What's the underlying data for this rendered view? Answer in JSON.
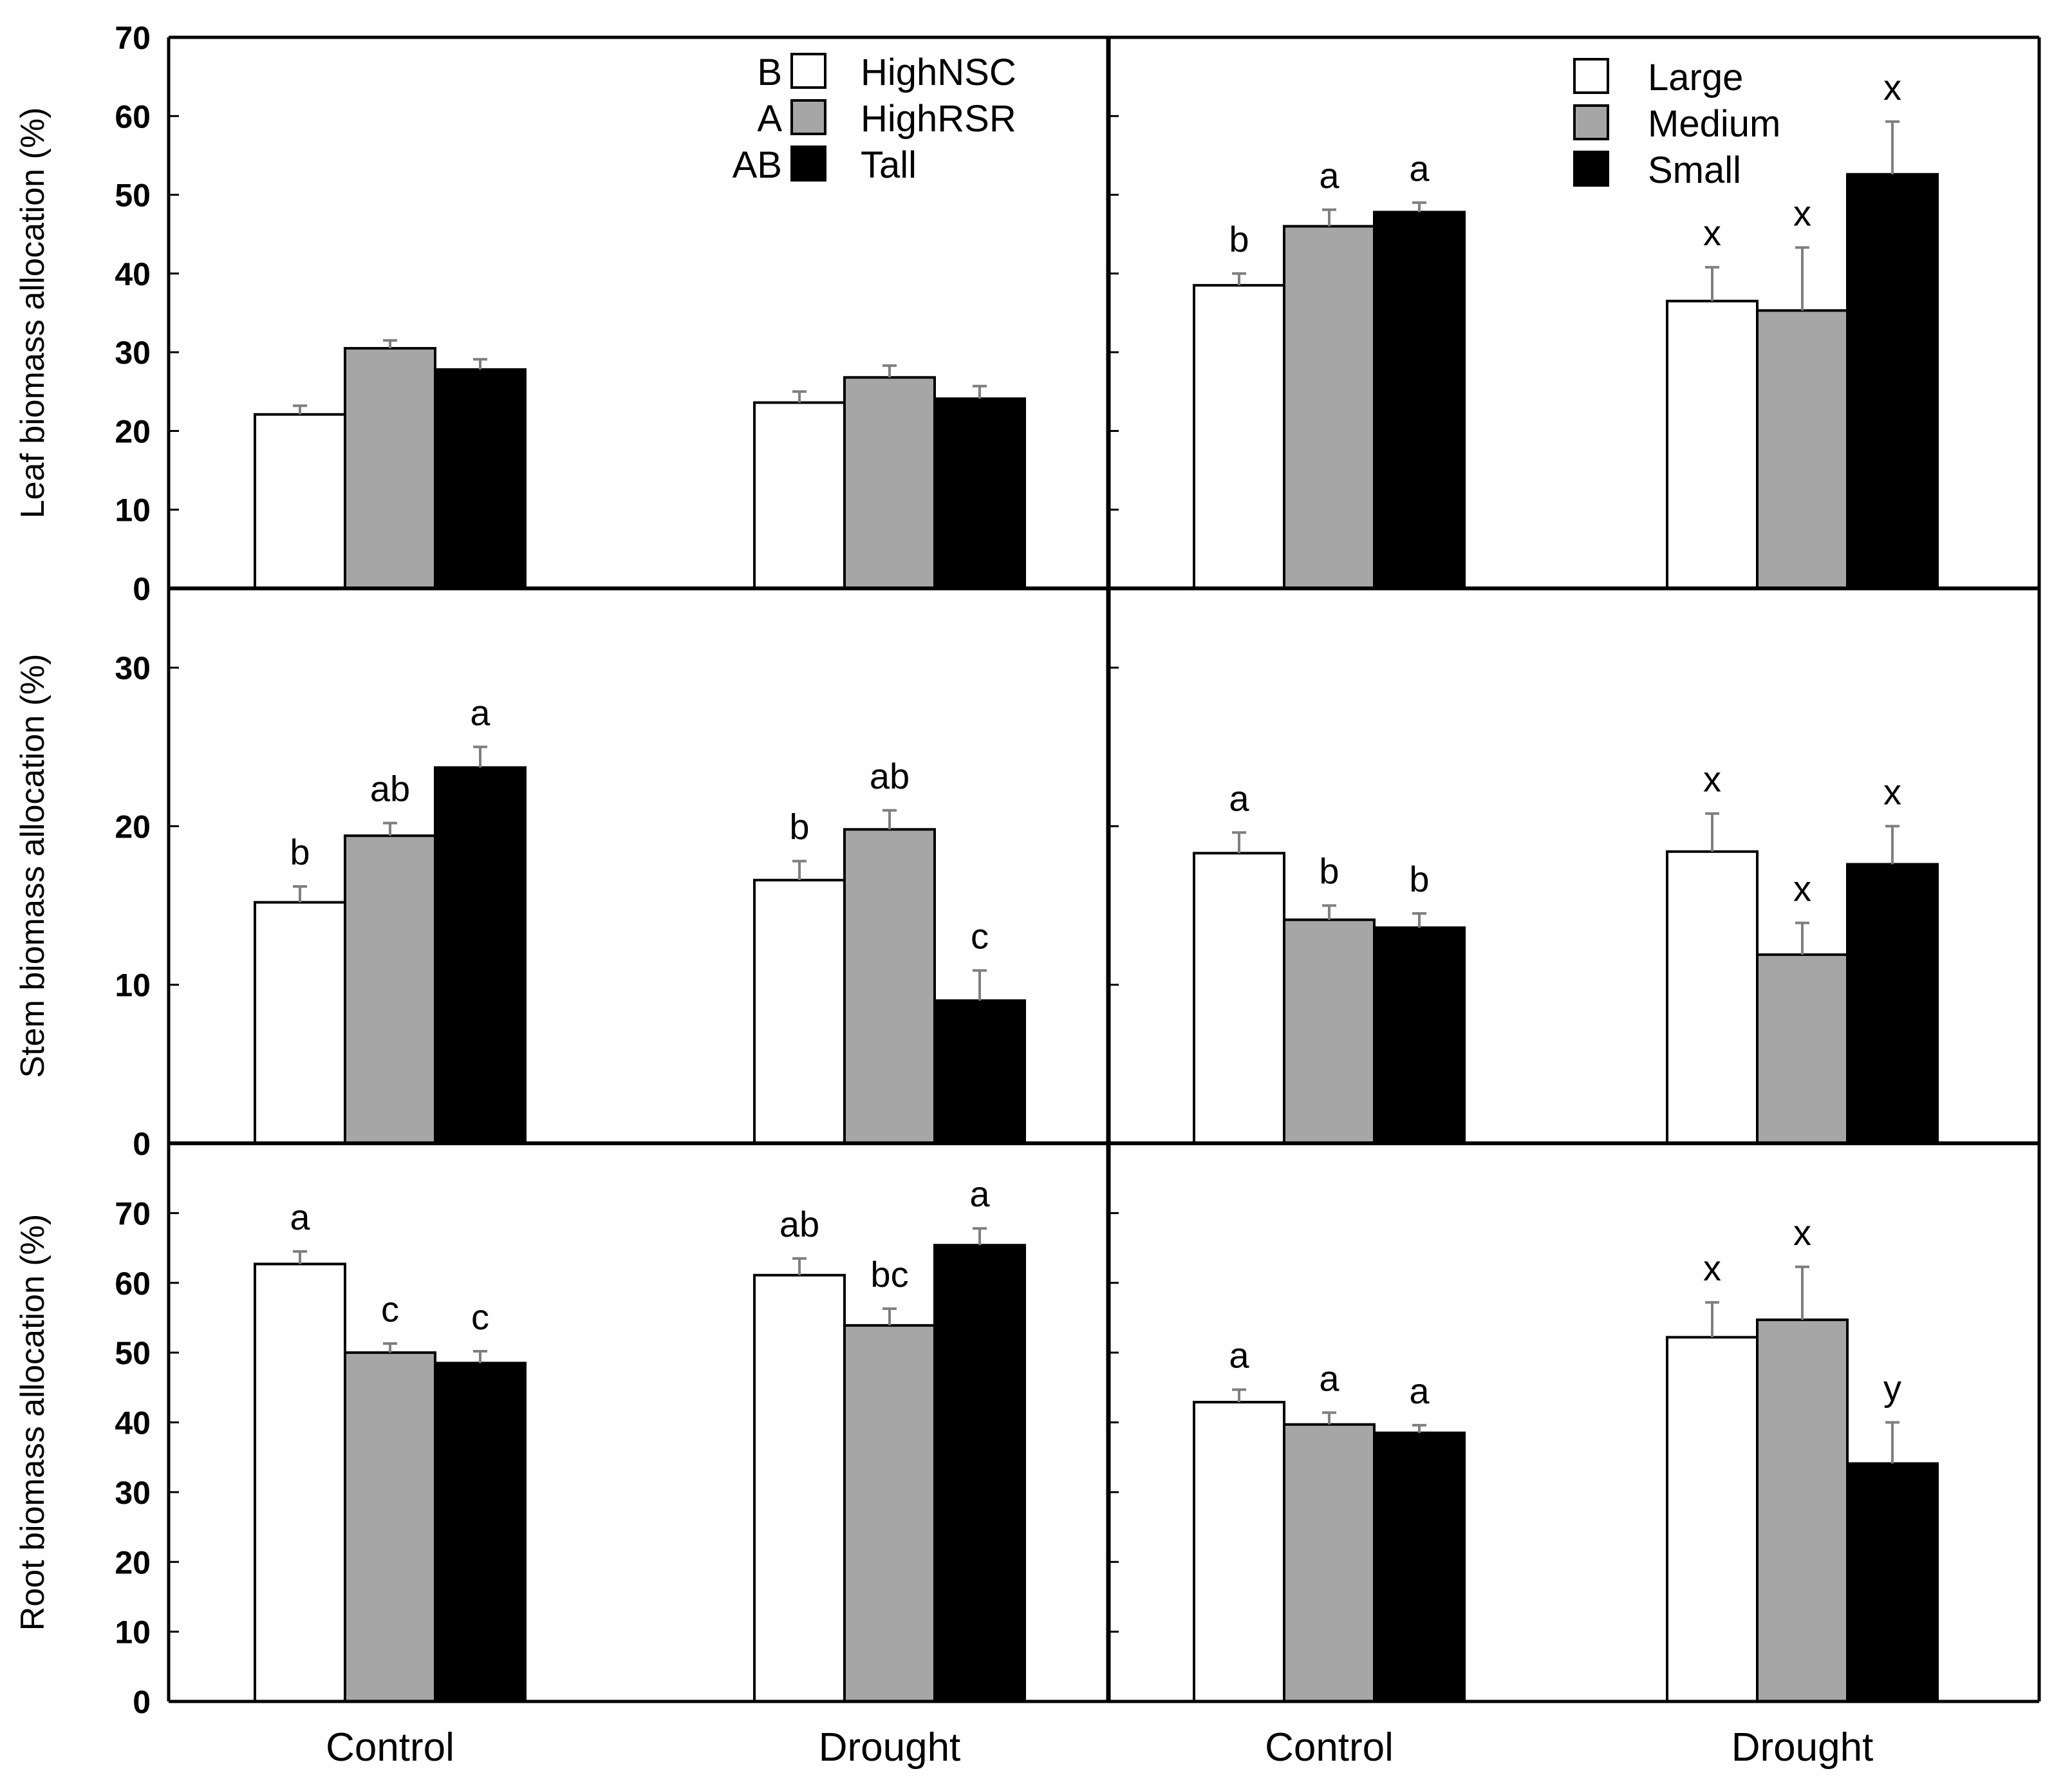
{
  "figure": {
    "x_categories": [
      "Control",
      "Drought"
    ],
    "colors": {
      "white": "#ffffff",
      "gray": "#a6a6a6",
      "black": "#000000",
      "error_bar": "#7f7f7f"
    }
  },
  "chart_data": [
    {
      "type": "bar",
      "id": "leaf-left",
      "row": 0,
      "col": 0,
      "ylabel": "Leaf biomass allocation (%)",
      "ylim": [
        0,
        70
      ],
      "yticks": [
        0,
        10,
        20,
        30,
        40,
        50,
        60,
        70
      ],
      "ytick_labels": [
        "0",
        "10",
        "20",
        "30",
        "40",
        "50",
        "60",
        "70"
      ],
      "categories": [
        "Control",
        "Drought"
      ],
      "series": [
        {
          "name": "HighNSC",
          "color": "white",
          "values": [
            22.1,
            23.6
          ],
          "errors": [
            1.1,
            1.4
          ],
          "letters": [
            "",
            ""
          ]
        },
        {
          "name": "HighRSR",
          "color": "gray",
          "values": [
            30.5,
            26.8
          ],
          "errors": [
            1.0,
            1.5
          ],
          "letters": [
            "",
            ""
          ]
        },
        {
          "name": "Tall",
          "color": "black",
          "values": [
            27.8,
            24.1
          ],
          "errors": [
            1.3,
            1.6
          ],
          "letters": [
            "",
            ""
          ]
        }
      ],
      "legend": {
        "position": "top-right",
        "entries": [
          {
            "group_letter": "B",
            "label": "HighNSC",
            "color": "white"
          },
          {
            "group_letter": "A",
            "label": "HighRSR",
            "color": "gray"
          },
          {
            "group_letter": "AB",
            "label": "Tall",
            "color": "black"
          }
        ]
      }
    },
    {
      "type": "bar",
      "id": "leaf-right",
      "row": 0,
      "col": 1,
      "ylim": [
        0,
        70
      ],
      "yticks": [
        0,
        10,
        20,
        30,
        40,
        50,
        60,
        70
      ],
      "categories": [
        "Control",
        "Drought"
      ],
      "series": [
        {
          "name": "Large",
          "color": "white",
          "values": [
            38.5,
            36.5
          ],
          "errors": [
            1.5,
            4.3
          ],
          "letters": [
            "b",
            "x"
          ]
        },
        {
          "name": "Medium",
          "color": "gray",
          "values": [
            46.0,
            35.3
          ],
          "errors": [
            2.1,
            8.0
          ],
          "letters": [
            "a",
            "x"
          ]
        },
        {
          "name": "Small",
          "color": "black",
          "values": [
            47.8,
            52.6
          ],
          "errors": [
            1.2,
            6.7
          ],
          "letters": [
            "a",
            "x"
          ]
        }
      ],
      "legend": {
        "position": "top-right",
        "entries": [
          {
            "label": "Large",
            "color": "white"
          },
          {
            "label": "Medium",
            "color": "gray"
          },
          {
            "label": "Small",
            "color": "black"
          }
        ]
      }
    },
    {
      "type": "bar",
      "id": "stem-left",
      "row": 1,
      "col": 0,
      "ylabel": "Stem biomass allocation (%)",
      "ylim": [
        0,
        35
      ],
      "yticks": [
        0,
        10,
        20,
        30
      ],
      "ytick_labels": [
        "0",
        "10",
        "20",
        "30"
      ],
      "categories": [
        "Control",
        "Drought"
      ],
      "series": [
        {
          "name": "HighNSC",
          "color": "white",
          "values": [
            15.2,
            16.6
          ],
          "errors": [
            1.0,
            1.2
          ],
          "letters": [
            "b",
            "b"
          ]
        },
        {
          "name": "HighRSR",
          "color": "gray",
          "values": [
            19.4,
            19.8
          ],
          "errors": [
            0.8,
            1.2
          ],
          "letters": [
            "ab",
            "ab"
          ]
        },
        {
          "name": "Tall",
          "color": "black",
          "values": [
            23.7,
            9.0
          ],
          "errors": [
            1.3,
            1.9
          ],
          "letters": [
            "a",
            "c"
          ]
        }
      ]
    },
    {
      "type": "bar",
      "id": "stem-right",
      "row": 1,
      "col": 1,
      "ylim": [
        0,
        35
      ],
      "yticks": [
        0,
        10,
        20,
        30
      ],
      "categories": [
        "Control",
        "Drought"
      ],
      "series": [
        {
          "name": "Large",
          "color": "white",
          "values": [
            18.3,
            18.4
          ],
          "errors": [
            1.3,
            2.4
          ],
          "letters": [
            "a",
            "x"
          ]
        },
        {
          "name": "Medium",
          "color": "gray",
          "values": [
            14.1,
            11.9
          ],
          "errors": [
            0.9,
            2.0
          ],
          "letters": [
            "b",
            "x"
          ]
        },
        {
          "name": "Small",
          "color": "black",
          "values": [
            13.6,
            17.6
          ],
          "errors": [
            0.9,
            2.4
          ],
          "letters": [
            "b",
            "x"
          ]
        }
      ]
    },
    {
      "type": "bar",
      "id": "root-left",
      "row": 2,
      "col": 0,
      "ylabel": "Root biomass allocation (%)",
      "ylim": [
        0,
        80
      ],
      "yticks": [
        0,
        10,
        20,
        30,
        40,
        50,
        60,
        70
      ],
      "ytick_labels": [
        "0",
        "10",
        "20",
        "30",
        "40",
        "50",
        "60",
        "70"
      ],
      "categories": [
        "Control",
        "Drought"
      ],
      "series": [
        {
          "name": "HighNSC",
          "color": "white",
          "values": [
            62.7,
            61.1
          ],
          "errors": [
            1.8,
            2.4
          ],
          "letters": [
            "a",
            "ab"
          ]
        },
        {
          "name": "HighRSR",
          "color": "gray",
          "values": [
            50.0,
            53.9
          ],
          "errors": [
            1.3,
            2.4
          ],
          "letters": [
            "c",
            "bc"
          ]
        },
        {
          "name": "Tall",
          "color": "black",
          "values": [
            48.5,
            65.4
          ],
          "errors": [
            1.7,
            2.4
          ],
          "letters": [
            "c",
            "a"
          ]
        }
      ]
    },
    {
      "type": "bar",
      "id": "root-right",
      "row": 2,
      "col": 1,
      "ylim": [
        0,
        80
      ],
      "yticks": [
        0,
        10,
        20,
        30,
        40,
        50,
        60,
        70
      ],
      "categories": [
        "Control",
        "Drought"
      ],
      "series": [
        {
          "name": "Large",
          "color": "white",
          "values": [
            42.9,
            52.2
          ],
          "errors": [
            1.8,
            5.0
          ],
          "letters": [
            "a",
            "x"
          ]
        },
        {
          "name": "Medium",
          "color": "gray",
          "values": [
            39.7,
            54.7
          ],
          "errors": [
            1.7,
            7.6
          ],
          "letters": [
            "a",
            "x"
          ]
        },
        {
          "name": "Small",
          "color": "black",
          "values": [
            38.5,
            34.1
          ],
          "errors": [
            1.1,
            5.9
          ],
          "letters": [
            "a",
            "y"
          ]
        }
      ]
    }
  ]
}
